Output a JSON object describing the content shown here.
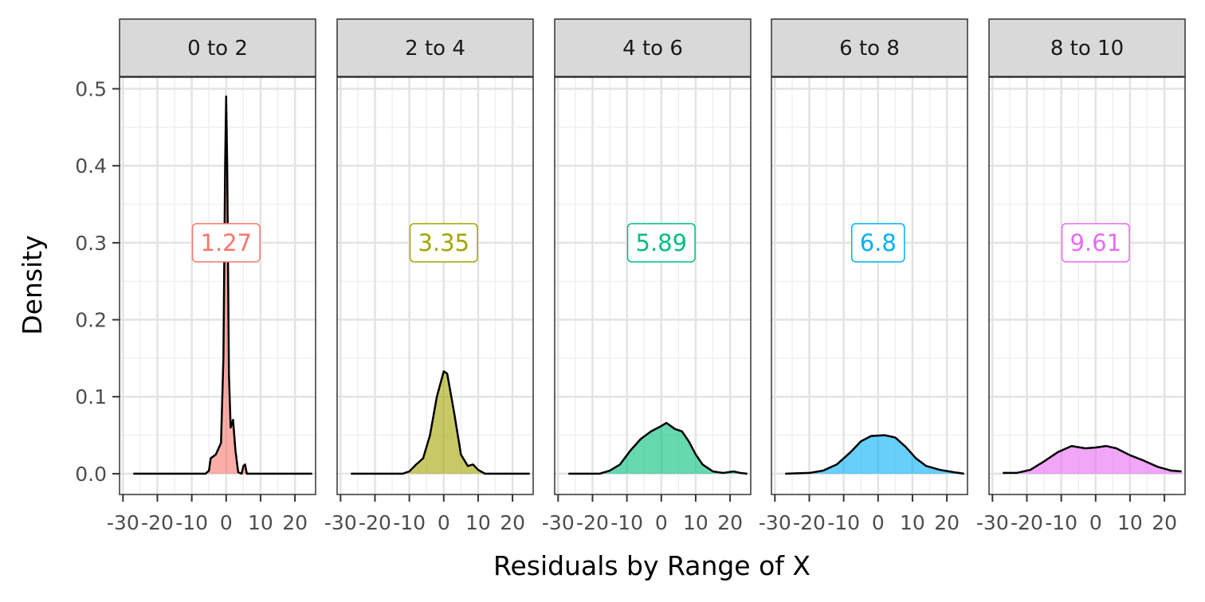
{
  "chart_data": {
    "type": "area",
    "xlabel": "Residuals by Range of X",
    "ylabel": "Density",
    "xlim": [
      -31,
      26
    ],
    "ylim": [
      -0.027,
      0.515
    ],
    "x_ticks": [
      -30,
      -20,
      -10,
      0,
      10,
      20
    ],
    "x_tick_labels": [
      "-30",
      "-20",
      "-10",
      "0",
      "10",
      "20"
    ],
    "y_ticks": [
      0.0,
      0.1,
      0.2,
      0.3,
      0.4,
      0.5
    ],
    "y_tick_labels": [
      "0.0",
      "0.1",
      "0.2",
      "0.3",
      "0.4",
      "0.5"
    ],
    "grid": true,
    "label_y": 0.3,
    "facets": [
      {
        "strip": "0 to 2",
        "label": "1.27",
        "color": "#F8766D",
        "curve": [
          [
            -27,
            0
          ],
          [
            -6,
            0
          ],
          [
            -5,
            0.004
          ],
          [
            -4.5,
            0.02
          ],
          [
            -3,
            0.025
          ],
          [
            -1.5,
            0.04
          ],
          [
            -0.8,
            0.15
          ],
          [
            -0.3,
            0.4
          ],
          [
            0,
            0.49
          ],
          [
            0.3,
            0.4
          ],
          [
            0.8,
            0.13
          ],
          [
            1.3,
            0.06
          ],
          [
            2,
            0.07
          ],
          [
            2.7,
            0.03
          ],
          [
            3.5,
            0.002
          ],
          [
            4.5,
            0
          ],
          [
            5,
            0.01
          ],
          [
            5.5,
            0.012
          ],
          [
            6,
            0
          ],
          [
            25,
            0
          ]
        ]
      },
      {
        "strip": "2 to 4",
        "label": "3.35",
        "color": "#A3A500",
        "curve": [
          [
            -27,
            0
          ],
          [
            -12,
            0
          ],
          [
            -10,
            0.003
          ],
          [
            -8,
            0.012
          ],
          [
            -6,
            0.02
          ],
          [
            -4,
            0.05
          ],
          [
            -2,
            0.1
          ],
          [
            0,
            0.133
          ],
          [
            1,
            0.13
          ],
          [
            3,
            0.08
          ],
          [
            5,
            0.025
          ],
          [
            7,
            0.01
          ],
          [
            8.5,
            0.012
          ],
          [
            10,
            0.005
          ],
          [
            12,
            0
          ],
          [
            25,
            0
          ]
        ]
      },
      {
        "strip": "4 to 6",
        "label": "5.89",
        "color": "#00BF7D",
        "curve": [
          [
            -27,
            0
          ],
          [
            -18,
            0
          ],
          [
            -15,
            0.004
          ],
          [
            -12,
            0.012
          ],
          [
            -9,
            0.03
          ],
          [
            -6,
            0.045
          ],
          [
            -3,
            0.055
          ],
          [
            0,
            0.062
          ],
          [
            1.5,
            0.066
          ],
          [
            4,
            0.058
          ],
          [
            6,
            0.055
          ],
          [
            8,
            0.042
          ],
          [
            10,
            0.025
          ],
          [
            12,
            0.012
          ],
          [
            15,
            0.003
          ],
          [
            18,
            0.001
          ],
          [
            21,
            0.003
          ],
          [
            23,
            0.001
          ],
          [
            25,
            0
          ]
        ]
      },
      {
        "strip": "6 to 8",
        "label": "6.8",
        "color": "#00B0F6",
        "curve": [
          [
            -27,
            0
          ],
          [
            -20,
            0.001
          ],
          [
            -16,
            0.004
          ],
          [
            -12,
            0.012
          ],
          [
            -8,
            0.028
          ],
          [
            -5,
            0.042
          ],
          [
            -2,
            0.049
          ],
          [
            2,
            0.05
          ],
          [
            5,
            0.047
          ],
          [
            8,
            0.035
          ],
          [
            11,
            0.02
          ],
          [
            14,
            0.01
          ],
          [
            18,
            0.005
          ],
          [
            22,
            0.002
          ],
          [
            25,
            0
          ]
        ]
      },
      {
        "strip": "8 to 10",
        "label": "9.61",
        "color": "#E76BF3",
        "curve": [
          [
            -27,
            0.001
          ],
          [
            -23,
            0.001
          ],
          [
            -19,
            0.005
          ],
          [
            -15,
            0.016
          ],
          [
            -11,
            0.028
          ],
          [
            -7,
            0.036
          ],
          [
            -3,
            0.033
          ],
          [
            0,
            0.034
          ],
          [
            3,
            0.036
          ],
          [
            6,
            0.033
          ],
          [
            10,
            0.024
          ],
          [
            14,
            0.017
          ],
          [
            18,
            0.009
          ],
          [
            22,
            0.004
          ],
          [
            25,
            0.003
          ]
        ]
      }
    ]
  }
}
